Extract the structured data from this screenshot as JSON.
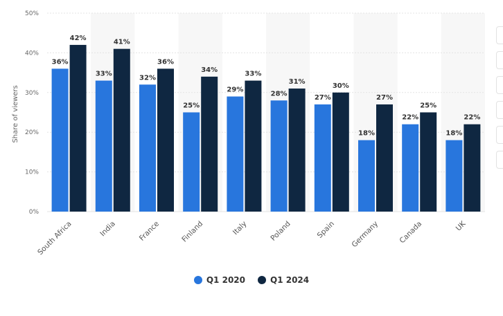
{
  "chart_data": {
    "type": "bar",
    "categories": [
      "South Africa",
      "India",
      "France",
      "Finland",
      "Italy",
      "Poland",
      "Spain",
      "Germany",
      "Canada",
      "UK"
    ],
    "series": [
      {
        "name": "Q1 2020",
        "values": [
          36,
          33,
          32,
          25,
          29,
          28,
          27,
          18,
          22,
          18
        ],
        "color": "#2876dd"
      },
      {
        "name": "Q1 2024",
        "values": [
          42,
          41,
          36,
          34,
          33,
          31,
          30,
          27,
          25,
          22
        ],
        "color": "#0f2741"
      }
    ],
    "data_labels": [
      [
        "36%",
        "33%",
        "32%",
        "25%",
        "29%",
        "28%",
        "27%",
        "18%",
        "22%",
        "18%"
      ],
      [
        "42%",
        "41%",
        "36%",
        "34%",
        "33%",
        "31%",
        "30%",
        "27%",
        "25%",
        "22%"
      ]
    ],
    "ylabel": "Share of viewers",
    "xlabel": "",
    "ylim": [
      0,
      50
    ],
    "yticks": [
      "0%",
      "10%",
      "20%",
      "30%",
      "40%",
      "50%"
    ],
    "ytick_values": [
      0,
      10,
      20,
      30,
      40,
      50
    ],
    "grid": true,
    "legend_position": "bottom-center"
  }
}
